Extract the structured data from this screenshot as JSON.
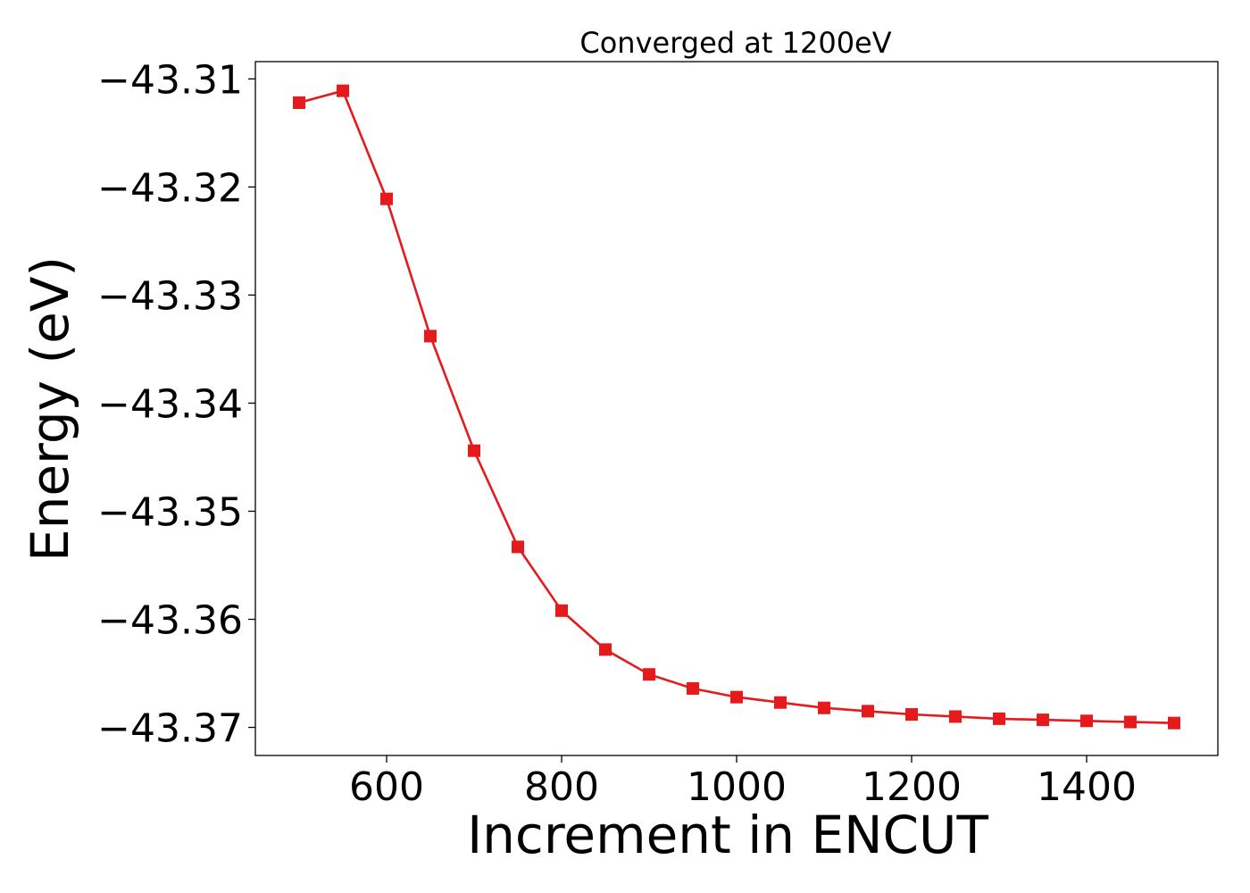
{
  "chart_data": {
    "type": "line",
    "title": "Converged at 1200eV",
    "xlabel": "Increment in ENCUT",
    "ylabel": "Energy (eV)",
    "xlim": [
      450,
      1550
    ],
    "ylim": [
      -43.3726,
      -43.3084
    ],
    "xticks": [
      600,
      800,
      1000,
      1200,
      1400
    ],
    "xtick_labels": [
      "600",
      "800",
      "1000",
      "1200",
      "1400"
    ],
    "yticks": [
      -43.31,
      -43.32,
      -43.33,
      -43.34,
      -43.35,
      -43.36,
      -43.37
    ],
    "ytick_labels": [
      "−43.31",
      "−43.32",
      "−43.33",
      "−43.34",
      "−43.35",
      "−43.36",
      "−43.37"
    ],
    "grid": false,
    "legend": "none",
    "series": [
      {
        "color": "#e41a1c",
        "marker": "square",
        "x": [
          500,
          550,
          600,
          650,
          700,
          750,
          800,
          850,
          900,
          950,
          1000,
          1050,
          1100,
          1150,
          1200,
          1250,
          1300,
          1350,
          1400,
          1450,
          1500
        ],
        "y": [
          -43.3122,
          -43.3111,
          -43.3211,
          -43.3338,
          -43.3444,
          -43.3533,
          -43.3592,
          -43.3628,
          -43.3651,
          -43.3664,
          -43.3672,
          -43.3677,
          -43.3682,
          -43.3685,
          -43.3688,
          -43.369,
          -43.3692,
          -43.3693,
          -43.3694,
          -43.3695,
          -43.3696
        ]
      }
    ]
  }
}
